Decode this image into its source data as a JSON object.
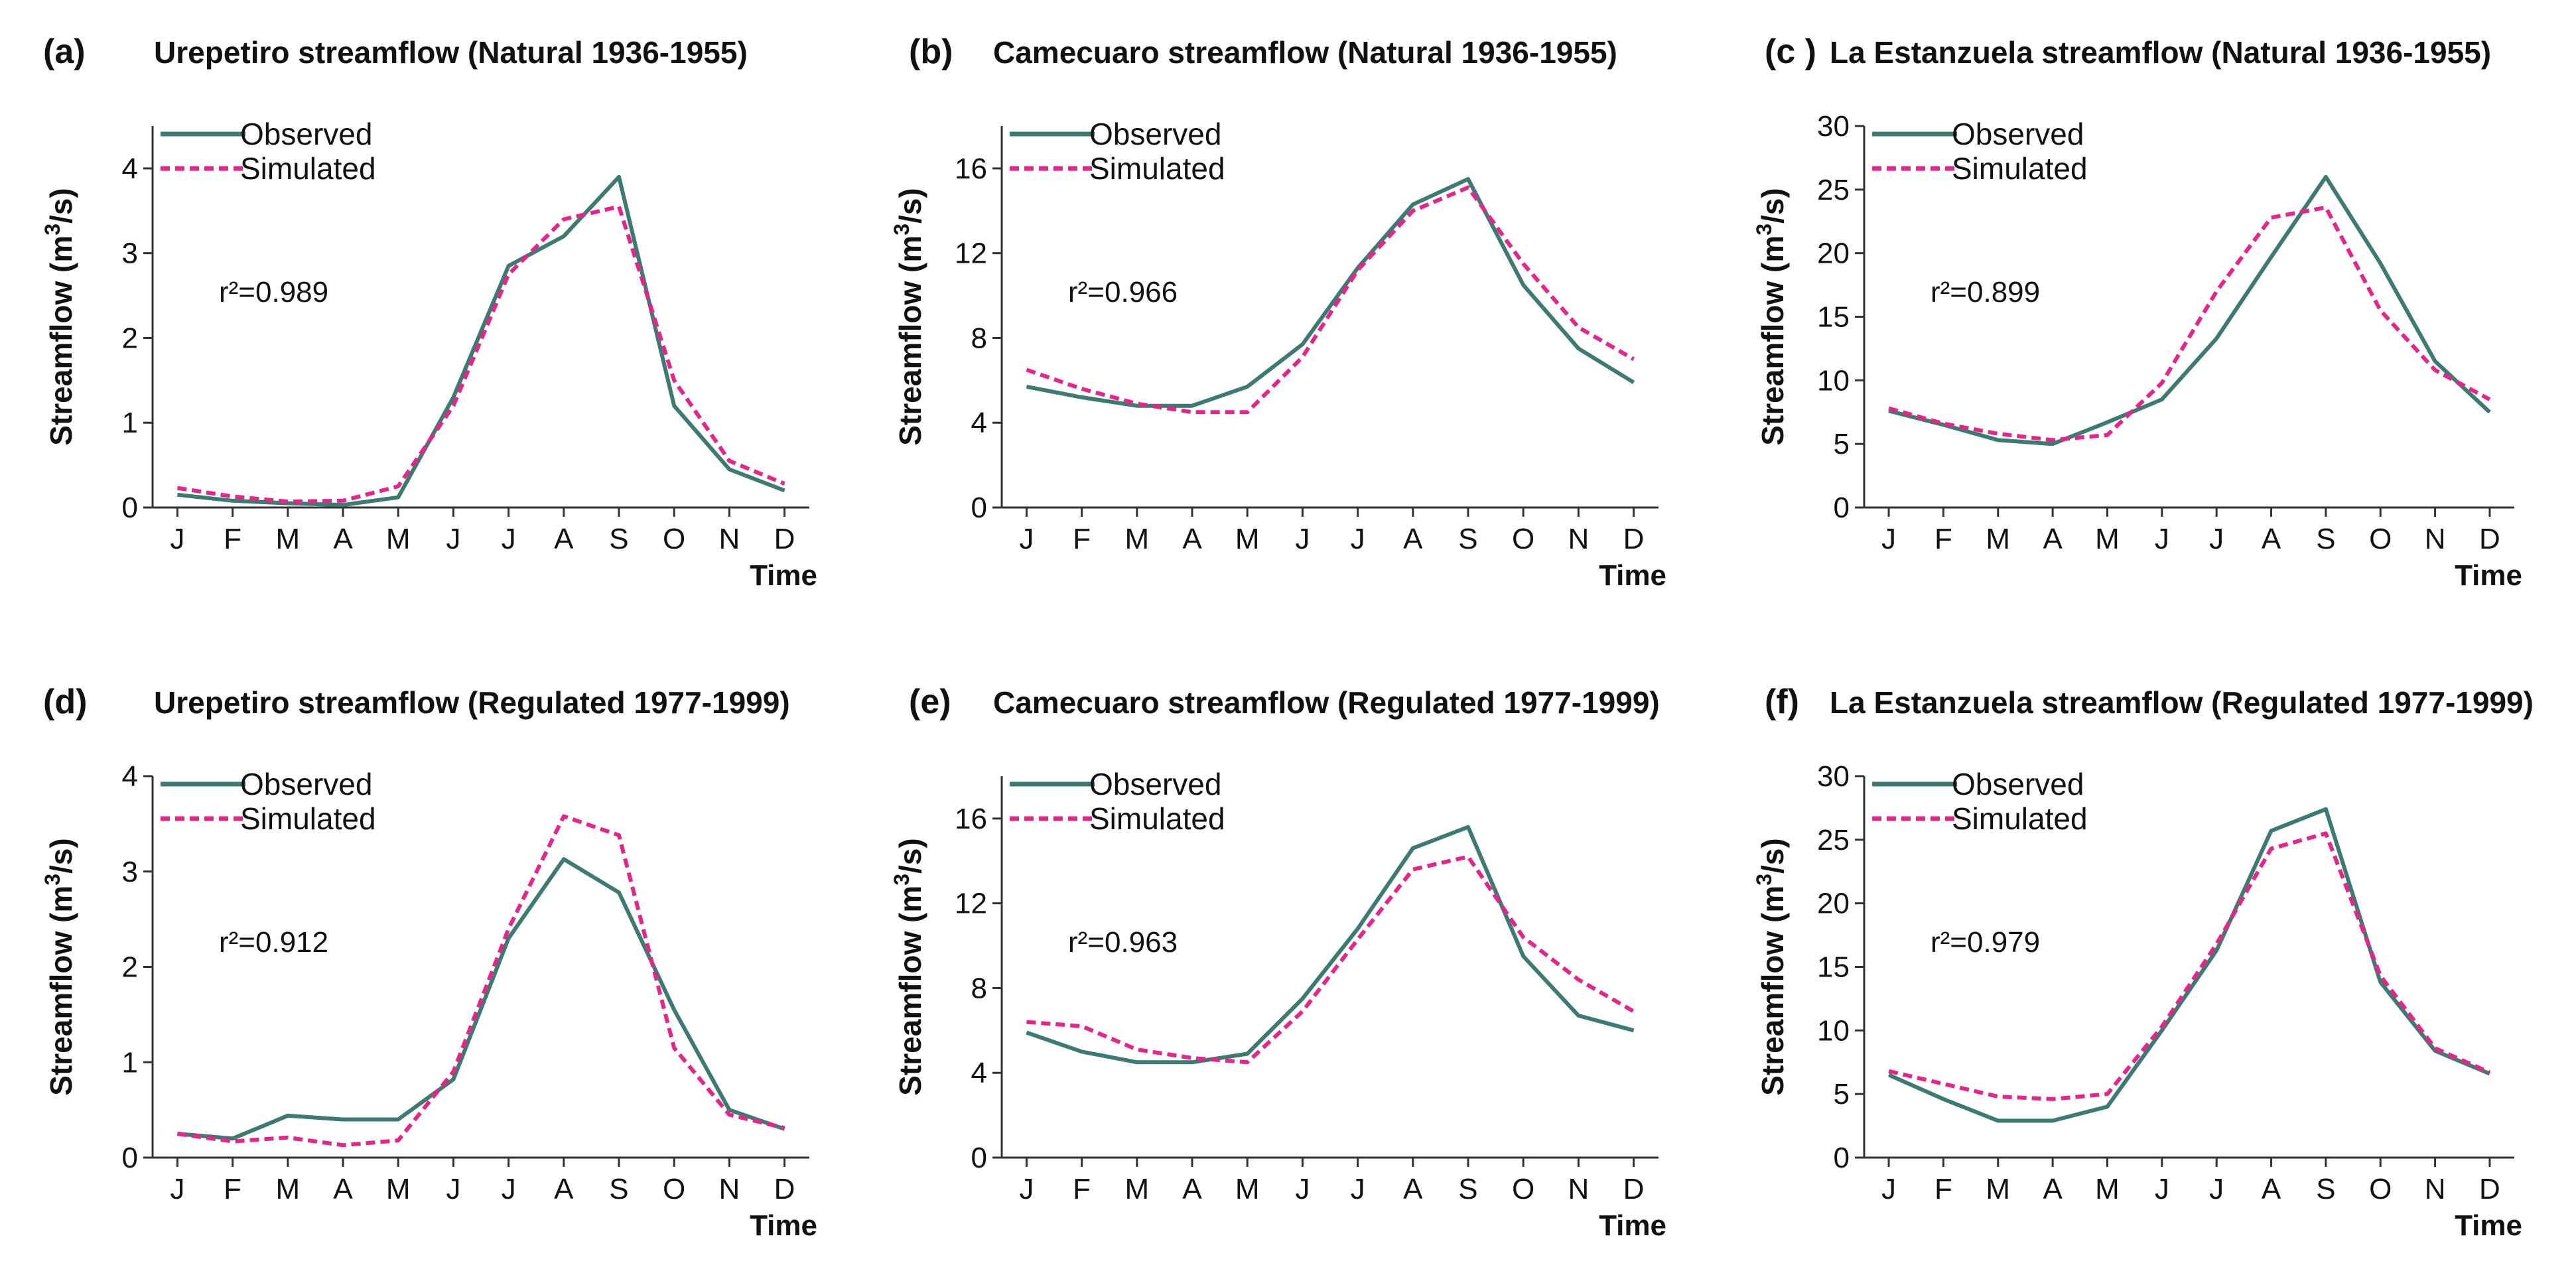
{
  "chart_data": [
    {
      "type": "line",
      "panel_label": "(a)",
      "title": "Urepetiro streamflow (Natural 1936-1955)",
      "xlabel": "Time",
      "ylabel": "Streamflow (m3/s)",
      "ylim": [
        0,
        4.5
      ],
      "yticks": [
        0,
        1,
        2,
        3,
        4
      ],
      "categories": [
        "J",
        "F",
        "M",
        "A",
        "M",
        "J",
        "J",
        "A",
        "S",
        "O",
        "N",
        "D"
      ],
      "r2": "r²=0.989",
      "series": [
        {
          "name": "Observed",
          "color": "#3d7a72",
          "values": [
            0.15,
            0.08,
            0.05,
            0.03,
            0.12,
            1.3,
            2.85,
            3.2,
            3.9,
            1.2,
            0.45,
            0.2
          ]
        },
        {
          "name": "Simulated",
          "color": "#e3268a",
          "values": [
            0.23,
            0.13,
            0.07,
            0.08,
            0.25,
            1.2,
            2.75,
            3.4,
            3.55,
            1.5,
            0.55,
            0.28
          ]
        }
      ]
    },
    {
      "type": "line",
      "panel_label": "(b)",
      "title": "Camecuaro streamflow (Natural 1936-1955)",
      "xlabel": "Time",
      "ylabel": "Streamflow (m3/s)",
      "ylim": [
        0,
        18
      ],
      "yticks": [
        0,
        4,
        8,
        12,
        16
      ],
      "categories": [
        "J",
        "F",
        "M",
        "A",
        "M",
        "J",
        "J",
        "A",
        "S",
        "O",
        "N",
        "D"
      ],
      "r2": "r²=0.966",
      "series": [
        {
          "name": "Observed",
          "color": "#3d7a72",
          "values": [
            5.7,
            5.2,
            4.8,
            4.8,
            5.7,
            7.7,
            11.3,
            14.3,
            15.5,
            10.5,
            7.5,
            5.9
          ]
        },
        {
          "name": "Simulated",
          "color": "#e3268a",
          "values": [
            6.5,
            5.6,
            4.9,
            4.5,
            4.5,
            7.1,
            11.2,
            14.0,
            15.1,
            11.5,
            8.5,
            7.0
          ]
        }
      ]
    },
    {
      "type": "line",
      "panel_label": "(c )",
      "title": "La Estanzuela streamflow (Natural 1936-1955)",
      "xlabel": "Time",
      "ylabel": "Streamflow (m3/s)",
      "ylim": [
        0,
        30
      ],
      "yticks": [
        0,
        5,
        10,
        15,
        20,
        25,
        30
      ],
      "categories": [
        "J",
        "F",
        "M",
        "A",
        "M",
        "J",
        "J",
        "A",
        "S",
        "O",
        "N",
        "D"
      ],
      "r2": "r²=0.899",
      "series": [
        {
          "name": "Observed",
          "color": "#3d7a72",
          "values": [
            7.6,
            6.5,
            5.3,
            5.0,
            6.7,
            8.5,
            13.3,
            19.7,
            26.0,
            19.2,
            11.5,
            7.5
          ]
        },
        {
          "name": "Simulated",
          "color": "#e3268a",
          "values": [
            7.8,
            6.6,
            5.8,
            5.3,
            5.7,
            9.8,
            17.0,
            22.8,
            23.6,
            15.5,
            10.8,
            8.5
          ]
        }
      ]
    },
    {
      "type": "line",
      "panel_label": "(d)",
      "title": "Urepetiro streamflow (Regulated 1977-1999)",
      "xlabel": "Time",
      "ylabel": "Streamflow (m3/s)",
      "ylim": [
        0,
        4
      ],
      "yticks": [
        0,
        1,
        2,
        3,
        4
      ],
      "categories": [
        "J",
        "F",
        "M",
        "A",
        "M",
        "J",
        "J",
        "A",
        "S",
        "O",
        "N",
        "D"
      ],
      "r2": "r²=0.912",
      "series": [
        {
          "name": "Observed",
          "color": "#3d7a72",
          "values": [
            0.25,
            0.2,
            0.44,
            0.4,
            0.4,
            0.82,
            2.3,
            3.13,
            2.78,
            1.55,
            0.5,
            0.3
          ]
        },
        {
          "name": "Simulated",
          "color": "#e3268a",
          "values": [
            0.25,
            0.17,
            0.21,
            0.13,
            0.18,
            0.9,
            2.4,
            3.58,
            3.38,
            1.15,
            0.45,
            0.31
          ]
        }
      ]
    },
    {
      "type": "line",
      "panel_label": "(e)",
      "title": "Camecuaro streamflow (Regulated 1977-1999)",
      "xlabel": "Time",
      "ylabel": "Streamflow (m3/s)",
      "ylim": [
        0,
        18
      ],
      "yticks": [
        0,
        4,
        8,
        12,
        16
      ],
      "categories": [
        "J",
        "F",
        "M",
        "A",
        "M",
        "J",
        "J",
        "A",
        "S",
        "O",
        "N",
        "D"
      ],
      "r2": "r²=0.963",
      "series": [
        {
          "name": "Observed",
          "color": "#3d7a72",
          "values": [
            5.9,
            5.0,
            4.5,
            4.5,
            4.9,
            7.5,
            10.8,
            14.6,
            15.6,
            9.5,
            6.7,
            6.0
          ]
        },
        {
          "name": "Simulated",
          "color": "#e3268a",
          "values": [
            6.4,
            6.2,
            5.1,
            4.7,
            4.5,
            6.9,
            10.3,
            13.6,
            14.2,
            10.4,
            8.4,
            6.9
          ]
        }
      ]
    },
    {
      "type": "line",
      "panel_label": "(f)",
      "title": "La Estanzuela streamflow (Regulated 1977-1999)",
      "xlabel": "Time",
      "ylabel": "Streamflow (m3/s)",
      "ylim": [
        0,
        30
      ],
      "yticks": [
        0,
        5,
        10,
        15,
        20,
        25,
        30
      ],
      "categories": [
        "J",
        "F",
        "M",
        "A",
        "M",
        "J",
        "J",
        "A",
        "S",
        "O",
        "N",
        "D"
      ],
      "r2": "r²=0.979",
      "series": [
        {
          "name": "Observed",
          "color": "#3d7a72",
          "values": [
            6.5,
            4.6,
            2.9,
            2.9,
            4.0,
            10.0,
            16.3,
            25.7,
            27.4,
            13.8,
            8.4,
            6.6
          ]
        },
        {
          "name": "Simulated",
          "color": "#e3268a",
          "values": [
            6.8,
            5.8,
            4.8,
            4.6,
            5.0,
            10.3,
            16.8,
            24.3,
            25.5,
            14.3,
            8.6,
            6.7
          ]
        }
      ]
    }
  ]
}
